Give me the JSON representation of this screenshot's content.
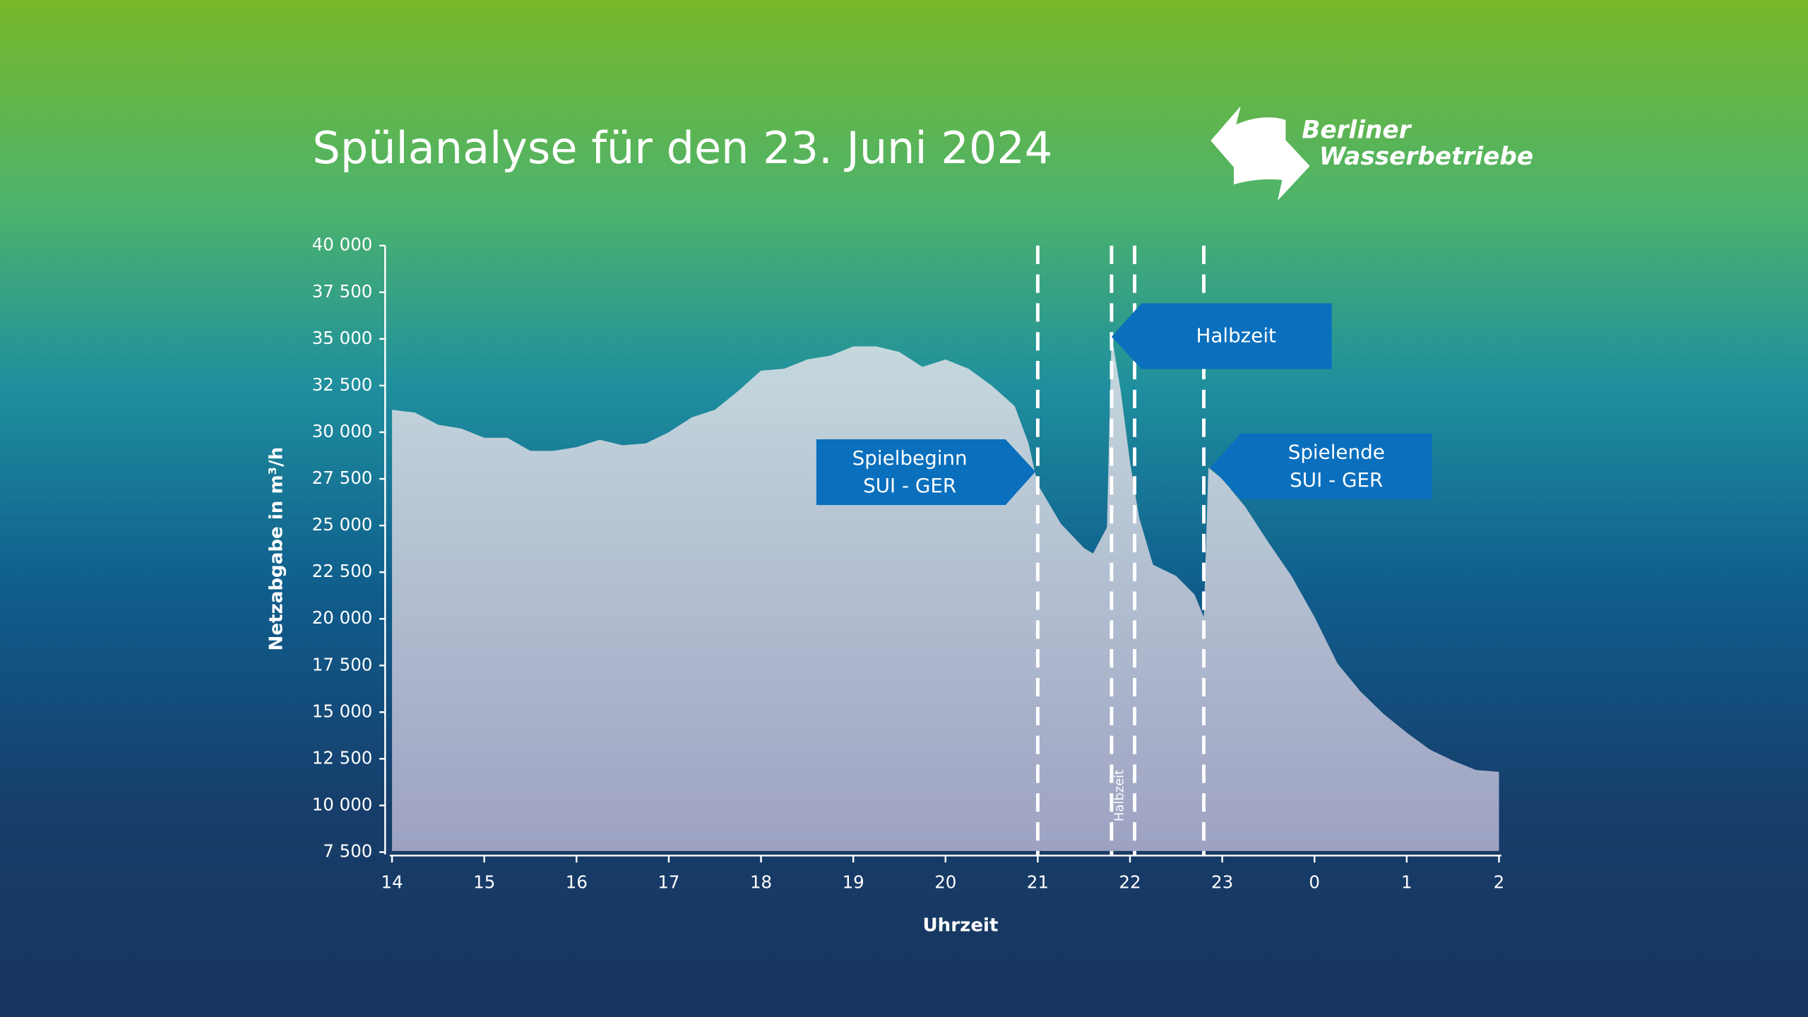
{
  "chart_data": {
    "type": "area",
    "title": "Spülanalyse für den 23. Juni 2024",
    "brand": [
      "Berliner",
      "Wasserbetriebe"
    ],
    "xlabel": "Uhrzeit",
    "ylabel": "Netzabgabe in m³/h",
    "x": [
      14,
      14.25,
      14.5,
      14.75,
      15,
      15.25,
      15.5,
      15.75,
      16,
      16.25,
      16.5,
      16.75,
      17,
      17.25,
      17.5,
      17.75,
      18,
      18.25,
      18.5,
      18.75,
      19,
      19.25,
      19.5,
      19.75,
      20,
      20.25,
      20.5,
      20.75,
      20.9,
      21,
      21.25,
      21.5,
      21.6,
      21.75,
      21.8,
      21.9,
      22,
      22.1,
      22.25,
      22.5,
      22.7,
      22.8,
      22.85,
      23,
      23.25,
      23.5,
      23.75,
      24,
      24.25,
      24.5,
      24.75,
      25,
      25.25,
      25.5,
      25.75,
      26
    ],
    "values": [
      31200,
      31050,
      30400,
      30200,
      29700,
      29700,
      29000,
      29000,
      29200,
      29600,
      29300,
      29400,
      30000,
      30800,
      31200,
      32200,
      33300,
      33400,
      33900,
      34100,
      34600,
      34600,
      34300,
      33500,
      33900,
      33400,
      32500,
      31400,
      29400,
      27200,
      25100,
      23800,
      23500,
      24900,
      35200,
      32200,
      28400,
      25400,
      22900,
      22300,
      21300,
      20100,
      28100,
      27500,
      26000,
      24100,
      22300,
      20100,
      17600,
      16100,
      14900,
      13900,
      13000,
      12400,
      11900,
      11800
    ],
    "xlim": [
      14,
      26
    ],
    "xticks": [
      14,
      15,
      16,
      17,
      18,
      19,
      20,
      21,
      22,
      23,
      {
        "value": 24,
        "label": "0"
      },
      {
        "value": 25,
        "label": "1"
      },
      {
        "value": 26,
        "label": "2"
      }
    ],
    "ylim": [
      7500,
      40000
    ],
    "yticks": [
      {
        "value": 7500,
        "label": "7 500"
      },
      {
        "value": 10000,
        "label": "10 000"
      },
      {
        "value": 12500,
        "label": "12 500"
      },
      {
        "value": 15000,
        "label": "15 000"
      },
      {
        "value": 17500,
        "label": "17 500"
      },
      {
        "value": 20000,
        "label": "20 000"
      },
      {
        "value": 22500,
        "label": "22 500"
      },
      {
        "value": 25000,
        "label": "25 000"
      },
      {
        "value": 27500,
        "label": "27 500"
      },
      {
        "value": 30000,
        "label": "30 000"
      },
      {
        "value": 32500,
        "label": "32 500"
      },
      {
        "value": 35000,
        "label": "35 000"
      },
      {
        "value": 37500,
        "label": "37 500"
      },
      {
        "value": 40000,
        "label": "40 000"
      }
    ],
    "event_lines": [
      21,
      21.8,
      22.05,
      22.8
    ],
    "annotations": {
      "start": [
        "Spielbeginn",
        "SUI - GER"
      ],
      "half": "Halbzeit",
      "end": [
        "Spielende",
        "SUI - GER"
      ],
      "half_small": "Halbzeit"
    }
  }
}
